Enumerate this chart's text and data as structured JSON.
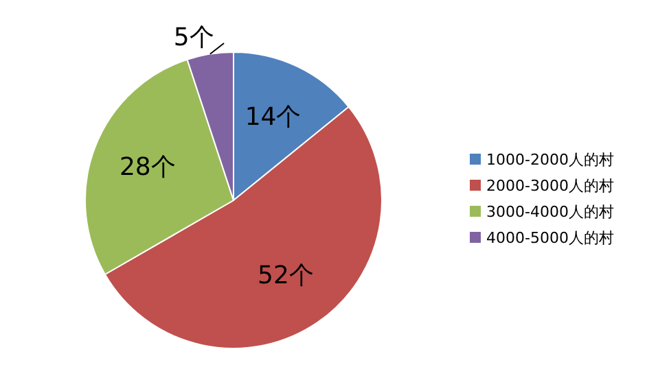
{
  "chart_data": {
    "type": "pie",
    "categories": [
      "1000-2000人的村",
      "2000-3000人的村",
      "3000-4000人的村",
      "4000-5000人的村"
    ],
    "values": [
      14,
      52,
      28,
      5
    ],
    "colors": [
      "#4f81bd",
      "#c0504d",
      "#9bbb59",
      "#8064a2"
    ],
    "value_labels": [
      "14个",
      "52个",
      "28个",
      "5个"
    ],
    "legend": "right"
  }
}
